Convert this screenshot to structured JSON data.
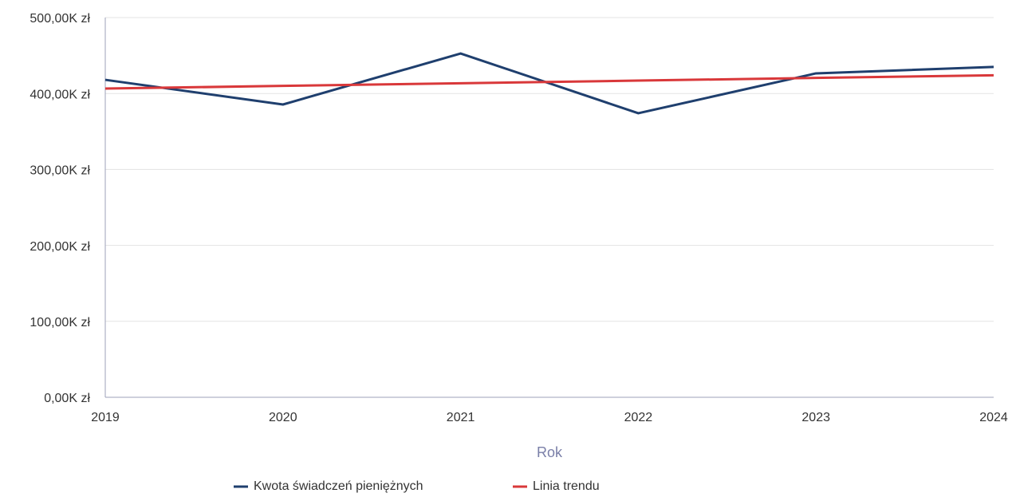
{
  "chart_data": {
    "type": "line",
    "x_label": "Rok",
    "categories": [
      "2019",
      "2020",
      "2021",
      "2022",
      "2023",
      "2024"
    ],
    "series": [
      {
        "name": "Kwota świadczeń pieniężnych",
        "color": "#1f3f6e",
        "values": [
          418000,
          385500,
          452700,
          374000,
          426500,
          435000
        ]
      },
      {
        "name": "Linia trendu",
        "color": "#d9383a",
        "values": [
          406500,
          410000,
          413500,
          417000,
          420500,
          424000
        ]
      }
    ],
    "ylim": [
      0,
      500000
    ],
    "yticks": [
      {
        "value": 0,
        "label": "0,00K zł"
      },
      {
        "value": 100000,
        "label": "100,00K zł"
      },
      {
        "value": 200000,
        "label": "200,00K zł"
      },
      {
        "value": 300000,
        "label": "300,00K zł"
      },
      {
        "value": 400000,
        "label": "400,00K zł"
      },
      {
        "value": 500000,
        "label": "500,00K zł"
      }
    ],
    "grid": true
  }
}
